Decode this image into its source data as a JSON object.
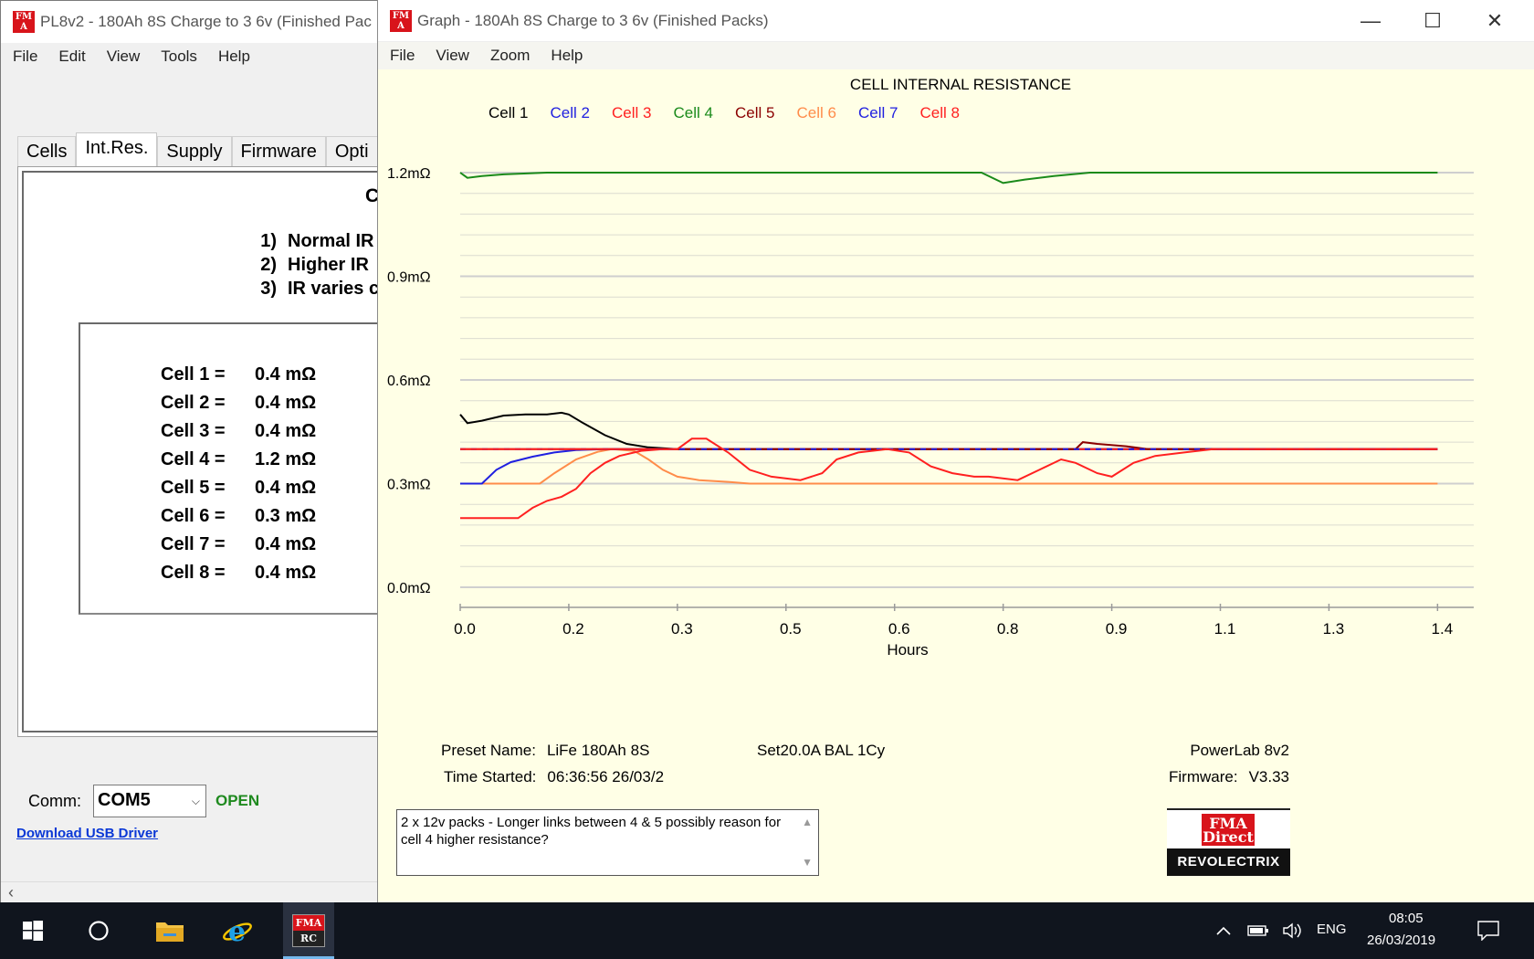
{
  "main_window": {
    "title": "PL8v2 - 180Ah 8S Charge to 3 6v (Finished Pac",
    "icon": "fma-app-icon",
    "menu": [
      "File",
      "Edit",
      "View",
      "Tools",
      "Help"
    ],
    "tabs": [
      "Cells",
      "Int.Res.",
      "Supply",
      "Firmware",
      "Opti"
    ],
    "active_tab": "Int.Res.",
    "panel_heading": "C",
    "notes": [
      {
        "num": "1)",
        "text": "Normal IR"
      },
      {
        "num": "2)",
        "text": "Higher IR"
      },
      {
        "num": "3)",
        "text": "IR varies c"
      }
    ],
    "cells": [
      {
        "label": "Cell 1 =",
        "value": "0.4 mΩ"
      },
      {
        "label": "Cell 2 =",
        "value": "0.4 mΩ"
      },
      {
        "label": "Cell 3 =",
        "value": "0.4 mΩ"
      },
      {
        "label": "Cell 4 =",
        "value": "1.2 mΩ"
      },
      {
        "label": "Cell 5 =",
        "value": "0.4 mΩ"
      },
      {
        "label": "Cell 6 =",
        "value": "0.3 mΩ"
      },
      {
        "label": "Cell 7 =",
        "value": "0.4 mΩ"
      },
      {
        "label": "Cell 8 =",
        "value": "0.4 mΩ"
      }
    ],
    "comm_label": "Comm:",
    "comm_port": "COM5",
    "comm_status": "OPEN",
    "usb_link": "Download USB Driver"
  },
  "graph_window": {
    "title": "Graph - 180Ah 8S Charge to 3 6v (Finished Packs)",
    "icon": "fma-app-icon",
    "menu": [
      "File",
      "View",
      "Zoom",
      "Help"
    ],
    "preset_label": "Preset Name:",
    "preset_value": "LiFe 180Ah 8S",
    "settings": "Set20.0A BAL 1Cy",
    "time_label": "Time Started:",
    "time_value": "06:36:56  26/03/2",
    "device": "PowerLab 8v2",
    "firmware_label": "Firmware:",
    "firmware_value": "V3.33",
    "comment": "2 x 12v packs - Longer links between 4 & 5 possibly reason for cell 4 higher resistance?",
    "logo_top": "FMA Direct",
    "logo_bottom": "REVOLECTRIX"
  },
  "chart_data": {
    "type": "line",
    "title": "CELL INTERNAL RESISTANCE",
    "xlabel": "Hours",
    "ylabel": "",
    "xlim": [
      0,
      1.4
    ],
    "ylim": [
      0,
      1.2
    ],
    "x_ticks": [
      "0.0",
      "0.2",
      "0.3",
      "0.5",
      "0.6",
      "0.8",
      "0.9",
      "1.1",
      "1.3",
      "1.4"
    ],
    "x_tick_values": [
      0.0,
      0.15,
      0.3,
      0.45,
      0.6,
      0.75,
      0.9,
      1.05,
      1.2,
      1.35
    ],
    "y_ticks": [
      "0.0mΩ",
      "0.3mΩ",
      "0.6mΩ",
      "0.9mΩ",
      "1.2mΩ"
    ],
    "y_tick_values": [
      0.0,
      0.3,
      0.6,
      0.9,
      1.2
    ],
    "grid": true,
    "legend": "top",
    "series": [
      {
        "name": "Cell 1",
        "color": "#000000",
        "points": [
          [
            0,
            0.5
          ],
          [
            0.01,
            0.475
          ],
          [
            0.03,
            0.482
          ],
          [
            0.06,
            0.497
          ],
          [
            0.09,
            0.5
          ],
          [
            0.12,
            0.5
          ],
          [
            0.14,
            0.505
          ],
          [
            0.15,
            0.5
          ],
          [
            0.17,
            0.475
          ],
          [
            0.2,
            0.44
          ],
          [
            0.23,
            0.415
          ],
          [
            0.26,
            0.405
          ],
          [
            0.3,
            0.4
          ],
          [
            1.35,
            0.4
          ]
        ]
      },
      {
        "name": "Cell 2",
        "color": "#2020e0",
        "points": [
          [
            0,
            0.3
          ],
          [
            0.03,
            0.3
          ],
          [
            0.05,
            0.34
          ],
          [
            0.07,
            0.362
          ],
          [
            0.1,
            0.378
          ],
          [
            0.13,
            0.39
          ],
          [
            0.16,
            0.397
          ],
          [
            0.2,
            0.4
          ],
          [
            1.35,
            0.4
          ]
        ]
      },
      {
        "name": "Cell 3",
        "color": "#ff2020",
        "points": [
          [
            0,
            0.2
          ],
          [
            0.08,
            0.2
          ],
          [
            0.1,
            0.23
          ],
          [
            0.12,
            0.25
          ],
          [
            0.14,
            0.262
          ],
          [
            0.16,
            0.285
          ],
          [
            0.18,
            0.33
          ],
          [
            0.2,
            0.36
          ],
          [
            0.22,
            0.38
          ],
          [
            0.25,
            0.395
          ],
          [
            0.28,
            0.4
          ],
          [
            1.35,
            0.4
          ]
        ]
      },
      {
        "name": "Cell 4",
        "color": "#1a8a1a",
        "points": [
          [
            0,
            1.2
          ],
          [
            0.01,
            1.185
          ],
          [
            0.03,
            1.19
          ],
          [
            0.06,
            1.195
          ],
          [
            0.12,
            1.2
          ],
          [
            0.72,
            1.2
          ],
          [
            0.75,
            1.17
          ],
          [
            0.78,
            1.18
          ],
          [
            0.82,
            1.19
          ],
          [
            0.87,
            1.2
          ],
          [
            1.35,
            1.2
          ]
        ]
      },
      {
        "name": "Cell 5",
        "color": "#8b0000",
        "points": [
          [
            0,
            0.4
          ],
          [
            0.85,
            0.4
          ],
          [
            0.86,
            0.42
          ],
          [
            0.88,
            0.415
          ],
          [
            0.92,
            0.408
          ],
          [
            0.95,
            0.4
          ],
          [
            1.35,
            0.4
          ]
        ]
      },
      {
        "name": "Cell 6",
        "color": "#ff8c4a",
        "points": [
          [
            0,
            0.3
          ],
          [
            0.11,
            0.3
          ],
          [
            0.13,
            0.33
          ],
          [
            0.16,
            0.37
          ],
          [
            0.19,
            0.392
          ],
          [
            0.21,
            0.4
          ],
          [
            0.24,
            0.395
          ],
          [
            0.26,
            0.37
          ],
          [
            0.28,
            0.34
          ],
          [
            0.3,
            0.32
          ],
          [
            0.33,
            0.31
          ],
          [
            0.37,
            0.305
          ],
          [
            0.4,
            0.3
          ],
          [
            1.35,
            0.3
          ]
        ]
      },
      {
        "name": "Cell 7",
        "color": "#2020e0",
        "points": [
          [
            0,
            0.4
          ],
          [
            1.35,
            0.4
          ]
        ]
      },
      {
        "name": "Cell 8",
        "color": "#ff2020",
        "points": [
          [
            0,
            0.4
          ],
          [
            0.3,
            0.4
          ],
          [
            0.32,
            0.43
          ],
          [
            0.34,
            0.43
          ],
          [
            0.37,
            0.39
          ],
          [
            0.4,
            0.34
          ],
          [
            0.43,
            0.32
          ],
          [
            0.47,
            0.31
          ],
          [
            0.5,
            0.33
          ],
          [
            0.52,
            0.37
          ],
          [
            0.55,
            0.39
          ],
          [
            0.59,
            0.4
          ],
          [
            0.62,
            0.39
          ],
          [
            0.65,
            0.35
          ],
          [
            0.68,
            0.33
          ],
          [
            0.71,
            0.32
          ],
          [
            0.73,
            0.32
          ],
          [
            0.77,
            0.31
          ],
          [
            0.8,
            0.34
          ],
          [
            0.83,
            0.37
          ],
          [
            0.85,
            0.36
          ],
          [
            0.88,
            0.33
          ],
          [
            0.9,
            0.32
          ],
          [
            0.93,
            0.36
          ],
          [
            0.96,
            0.38
          ],
          [
            1.0,
            0.39
          ],
          [
            1.04,
            0.4
          ],
          [
            1.35,
            0.4
          ]
        ]
      }
    ]
  },
  "taskbar": {
    "icons": [
      "windows-start-icon",
      "search-circle-icon",
      "file-explorer-icon",
      "internet-explorer-icon",
      "fma-rc-app-icon"
    ],
    "tray_language": "ENG",
    "time": "08:05",
    "date": "26/03/2019",
    "tray_icons": [
      "chevron-up-icon",
      "battery-icon",
      "volume-icon",
      "notification-icon"
    ]
  }
}
